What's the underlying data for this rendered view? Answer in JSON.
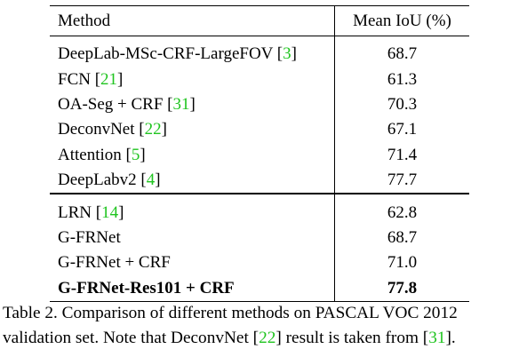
{
  "table": {
    "headers": [
      "Method",
      "Mean IoU (%)"
    ],
    "group1": [
      {
        "method": "DeepLab-MSc-CRF-LargeFOV",
        "ref": "3",
        "miou": "68.7"
      },
      {
        "method": "FCN",
        "ref": "21",
        "miou": "61.3"
      },
      {
        "method": "OA-Seg + CRF",
        "ref": "31",
        "miou": "70.3"
      },
      {
        "method": "DeconvNet",
        "ref": "22",
        "miou": "67.1"
      },
      {
        "method": "Attention",
        "ref": "5",
        "miou": "71.4"
      },
      {
        "method": "DeepLabv2",
        "ref": "4",
        "miou": "77.7"
      }
    ],
    "group2": [
      {
        "method": "LRN",
        "ref": "14",
        "miou": "62.8"
      },
      {
        "method": "G-FRNet",
        "ref": "",
        "miou": "68.7"
      },
      {
        "method": "G-FRNet + CRF",
        "ref": "",
        "miou": "71.0"
      },
      {
        "method": "G-FRNet-Res101 + CRF",
        "ref": "",
        "miou": "77.8"
      }
    ]
  },
  "caption": {
    "line1": "Table 2. Comparison of different methods on PASCAL VOC 2012",
    "line2_a": "validation set. Note that DeconvNet [",
    "line2_ref1": "22",
    "line2_b": "] result is taken from [",
    "line2_ref2": "31",
    "line2_c": "]."
  },
  "colors": {
    "reference_link": "#1fc41f",
    "text": "#000000"
  }
}
